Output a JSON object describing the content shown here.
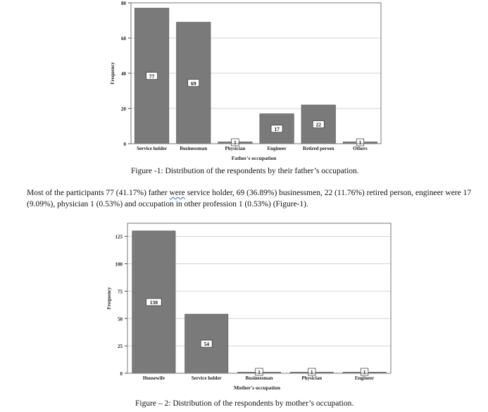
{
  "chart_data": [
    {
      "type": "bar",
      "categories": [
        "Service holder",
        "Businessman",
        "Physician",
        "Engineer",
        "Retired person",
        "Others"
      ],
      "values": [
        77,
        69,
        1,
        17,
        22,
        1
      ],
      "data_labels": [
        "77",
        "69",
        "1",
        "17",
        "22",
        "1"
      ],
      "xlabel": "Father's occupation",
      "ylabel": "Frequency",
      "ylim": [
        0,
        80
      ],
      "yticks": [
        0,
        20,
        40,
        60,
        80
      ],
      "ytick_labels": [
        "0",
        "20",
        "40",
        "60",
        "80"
      ],
      "grid": true,
      "bar_color": "#7a7a7a"
    },
    {
      "type": "bar",
      "categories": [
        "Housewife",
        "Service holder",
        "Businessman",
        "Physician",
        "Engineer"
      ],
      "values": [
        130,
        54,
        1,
        1,
        1
      ],
      "data_labels": [
        "130",
        "54",
        "1",
        "1",
        "1"
      ],
      "xlabel": "Mother's occupation",
      "ylabel": "Frequency",
      "ylim": [
        0,
        137
      ],
      "yticks": [
        0,
        25,
        50,
        75,
        100,
        125
      ],
      "ytick_labels": [
        "0",
        "25",
        "50",
        "75",
        "100",
        "125"
      ],
      "grid": true,
      "bar_color": "#7a7a7a"
    }
  ],
  "captions": {
    "figure1": "Figure -1: Distribution of the respondents by their father’s occupation.",
    "figure2": "Figure – 2: Distribution of the respondents by mother’s occupation."
  },
  "paragraph": {
    "before_typo": "Most of the participants 77 (41.17%) father ",
    "typo": "were",
    "after_typo": " service holder, 69 (36.89%) businessmen, 22 (11.76%) retired person, engineer were 17 (9.09%), physician 1 (0.53%) and occupation in other profession 1 (0.53%) (Figure-1)."
  }
}
